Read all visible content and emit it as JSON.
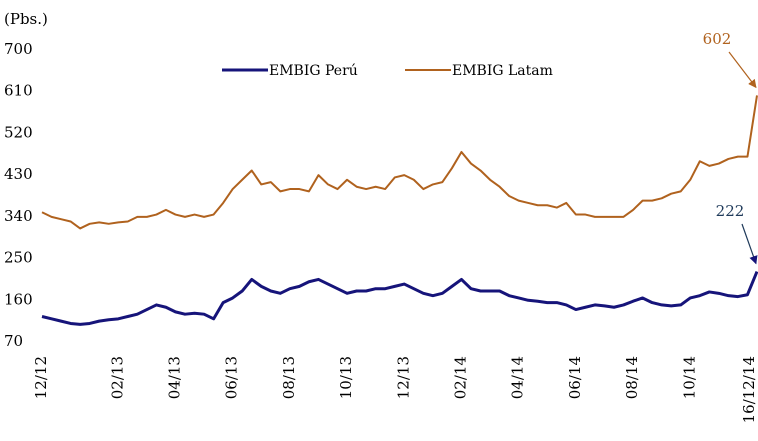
{
  "chart_data": {
    "type": "line",
    "y_axis_label": "(Pbs.)",
    "categories": [
      "12/12",
      null,
      null,
      null,
      null,
      null,
      null,
      null,
      "02/13",
      null,
      null,
      null,
      null,
      null,
      "04/13",
      null,
      null,
      null,
      null,
      null,
      "06/13",
      null,
      null,
      null,
      null,
      null,
      "08/13",
      null,
      null,
      null,
      null,
      null,
      "10/13",
      null,
      null,
      null,
      null,
      null,
      "12/13",
      null,
      null,
      null,
      null,
      null,
      "02/14",
      null,
      null,
      null,
      null,
      null,
      "04/14",
      null,
      null,
      null,
      null,
      null,
      "06/14",
      null,
      null,
      null,
      null,
      null,
      "08/14",
      null,
      null,
      null,
      null,
      null,
      "10/14",
      null,
      null,
      null,
      null,
      null,
      null,
      "16/12/14"
    ],
    "series": [
      {
        "name": "EMBIG Perú",
        "color": "#16147a",
        "values": [
          125,
          120,
          115,
          110,
          108,
          110,
          115,
          118,
          120,
          125,
          130,
          140,
          150,
          145,
          135,
          130,
          132,
          130,
          120,
          155,
          165,
          180,
          205,
          190,
          180,
          175,
          185,
          190,
          200,
          205,
          195,
          185,
          175,
          180,
          180,
          185,
          185,
          190,
          195,
          185,
          175,
          170,
          175,
          190,
          205,
          185,
          180,
          180,
          180,
          170,
          165,
          160,
          158,
          155,
          155,
          150,
          140,
          145,
          150,
          148,
          145,
          150,
          158,
          165,
          155,
          150,
          148,
          150,
          165,
          170,
          178,
          175,
          170,
          168,
          172,
          222
        ]
      },
      {
        "name": "EMBIG Latam",
        "color": "#b0621e",
        "values": [
          350,
          340,
          335,
          330,
          315,
          325,
          328,
          325,
          328,
          330,
          340,
          340,
          345,
          355,
          345,
          340,
          345,
          340,
          345,
          370,
          400,
          420,
          440,
          410,
          415,
          395,
          400,
          400,
          395,
          430,
          410,
          400,
          420,
          405,
          400,
          405,
          400,
          425,
          430,
          420,
          400,
          410,
          415,
          445,
          480,
          455,
          440,
          420,
          405,
          385,
          375,
          370,
          365,
          365,
          360,
          370,
          345,
          345,
          340,
          340,
          340,
          340,
          355,
          375,
          375,
          380,
          390,
          395,
          420,
          460,
          450,
          455,
          465,
          470,
          470,
          602
        ]
      }
    ],
    "annotations": [
      "222",
      "602"
    ],
    "ylim": [
      70,
      700
    ],
    "yticks": [
      70,
      160,
      250,
      340,
      430,
      520,
      610,
      700
    ],
    "grid": false,
    "legend": "top"
  }
}
